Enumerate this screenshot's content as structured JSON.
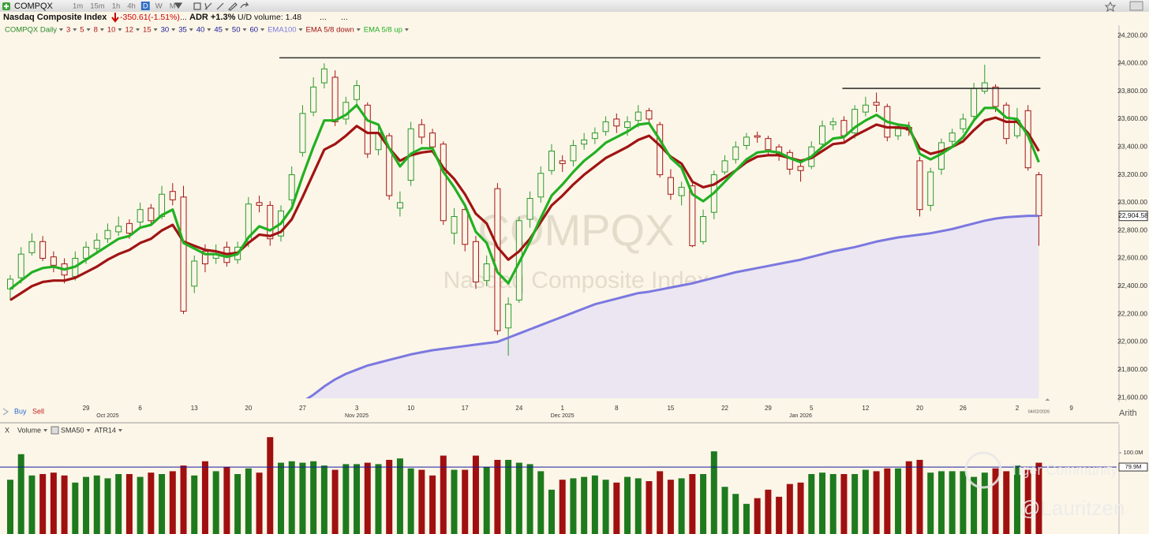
{
  "toolbar": {
    "symbol": "COMPQX",
    "intervals": [
      "1m",
      "15m",
      "1h",
      "4h",
      "D",
      "W",
      "M"
    ],
    "active_interval": "D"
  },
  "header": {
    "name": "Nasdaq Composite Index",
    "change": "-350.61(-1.51%)",
    "more": "...",
    "adr": "ADR +1.3%",
    "ud_volume": "U/D volume: 1.48"
  },
  "chart_data": [
    {
      "type": "candlestick",
      "title": "COMPQX Daily",
      "watermark": [
        "COMPQX",
        "Nasdaq Composite Index"
      ],
      "ribbon_periods": [
        {
          "label": "3",
          "color": "#b01818"
        },
        {
          "label": "5",
          "color": "#b01818"
        },
        {
          "label": "8",
          "color": "#b01818"
        },
        {
          "label": "10",
          "color": "#b01818"
        },
        {
          "label": "12",
          "color": "#b01818"
        },
        {
          "label": "15",
          "color": "#b01818"
        },
        {
          "label": "30",
          "color": "#1a1a9a"
        },
        {
          "label": "35",
          "color": "#1a1a9a"
        },
        {
          "label": "40",
          "color": "#1a1a9a"
        },
        {
          "label": "45",
          "color": "#1a1a9a"
        },
        {
          "label": "50",
          "color": "#1a1a9a"
        },
        {
          "label": "60",
          "color": "#1a1a9a"
        }
      ],
      "categories": [
        null,
        null,
        null,
        null,
        null,
        null,
        null,
        "29",
        null,
        null,
        null,
        null,
        "6",
        null,
        null,
        null,
        null,
        "13",
        null,
        null,
        null,
        null,
        "20",
        null,
        null,
        null,
        null,
        "27",
        null,
        null,
        null,
        null,
        "3",
        null,
        null,
        null,
        null,
        "10",
        null,
        null,
        null,
        null,
        "17",
        null,
        null,
        null,
        null,
        "24",
        null,
        null,
        null,
        "1",
        null,
        null,
        null,
        null,
        "8",
        null,
        null,
        null,
        null,
        "15",
        null,
        null,
        null,
        null,
        "22",
        null,
        null,
        null,
        "29",
        null,
        null,
        null,
        "5",
        null,
        null,
        null,
        null,
        "12",
        null,
        null,
        null,
        null,
        "20",
        null,
        null,
        null,
        "26",
        null,
        null,
        null,
        null,
        "2",
        null,
        null
      ],
      "future_ticks": [
        "9"
      ],
      "months": [
        "Oct 2025",
        "Nov 2025",
        "Dec 2025",
        "Jan 2026"
      ],
      "up_color": "#2c9a2c",
      "down_color": "#a31515",
      "open": [
        22380,
        22460,
        22640,
        22720,
        22610,
        22560,
        22470,
        22600,
        22670,
        22740,
        22790,
        22850,
        22860,
        22960,
        22900,
        23080,
        23040,
        22400,
        22650,
        22600,
        22680,
        22590,
        22720,
        23000,
        22980,
        22760,
        23020,
        23360,
        23650,
        23860,
        23900,
        23600,
        23740,
        23700,
        23380,
        23480,
        22960,
        23160,
        23560,
        23500,
        23420,
        22780,
        22950,
        22720,
        22440,
        23100,
        22100,
        22300,
        22880,
        23040,
        23230,
        23300,
        23300,
        23420,
        23460,
        23510,
        23600,
        23540,
        23590,
        23660,
        23560,
        23180,
        23050,
        23120,
        22720,
        22930,
        23220,
        23310,
        23410,
        23480,
        23460,
        23400,
        23360,
        23260,
        23260,
        23420,
        23560,
        23590,
        23500,
        23650,
        23720,
        23690,
        23480,
        23540,
        23300,
        22980,
        23240,
        23440,
        23530,
        23620,
        23800,
        23830,
        23700,
        23480,
        23660,
        23200
      ],
      "high": [
        22480,
        22680,
        22780,
        22760,
        22650,
        22600,
        22650,
        22720,
        22780,
        22850,
        22900,
        22880,
        23000,
        22990,
        23120,
        23140,
        23120,
        22620,
        22700,
        22700,
        22720,
        22720,
        23040,
        23050,
        23010,
        22980,
        23260,
        23700,
        23900,
        24000,
        23950,
        23760,
        23880,
        23720,
        23560,
        23500,
        23080,
        23580,
        23600,
        23530,
        23440,
        22960,
        22980,
        22760,
        22620,
        23140,
        22320,
        22900,
        23080,
        23260,
        23420,
        23340,
        23450,
        23500,
        23540,
        23620,
        23640,
        23620,
        23700,
        23680,
        23580,
        23240,
        23150,
        23140,
        22950,
        23230,
        23340,
        23440,
        23500,
        23510,
        23480,
        23420,
        23380,
        23300,
        23440,
        23590,
        23610,
        23620,
        23700,
        23760,
        23790,
        23710,
        23570,
        23580,
        23330,
        23250,
        23460,
        23530,
        23640,
        23860,
        23990,
        23850,
        23720,
        23680,
        23700,
        23220
      ],
      "low": [
        22300,
        22420,
        22620,
        22580,
        22500,
        22420,
        22440,
        22560,
        22640,
        22710,
        22760,
        22740,
        22830,
        22840,
        22880,
        22980,
        22200,
        22350,
        22500,
        22560,
        22540,
        22560,
        22680,
        22930,
        22690,
        22720,
        22990,
        23330,
        23620,
        23820,
        23550,
        23560,
        23700,
        23320,
        23340,
        23020,
        22900,
        23120,
        23420,
        23360,
        22840,
        22700,
        22650,
        22380,
        22400,
        22050,
        21900,
        22280,
        22820,
        23000,
        23200,
        23220,
        23260,
        23380,
        23420,
        23480,
        23500,
        23480,
        23540,
        23560,
        23180,
        23020,
        22980,
        22680,
        22700,
        22880,
        23200,
        23280,
        23380,
        23430,
        23340,
        23300,
        23200,
        23150,
        23240,
        23400,
        23520,
        23440,
        23460,
        23620,
        23650,
        23440,
        23450,
        23480,
        22900,
        22940,
        23200,
        23400,
        23500,
        23600,
        23780,
        23650,
        23420,
        23460,
        23230,
        22690
      ],
      "close": [
        22450,
        22630,
        22720,
        22600,
        22550,
        22480,
        22600,
        22680,
        22730,
        22800,
        22830,
        22780,
        22950,
        22870,
        23060,
        23020,
        22220,
        22580,
        22560,
        22630,
        22570,
        22680,
        22990,
        22980,
        22740,
        22940,
        23200,
        23640,
        23830,
        23960,
        23580,
        23720,
        23840,
        23350,
        23500,
        23050,
        23000,
        23530,
        23470,
        23400,
        22870,
        22900,
        22700,
        22430,
        22560,
        22080,
        22270,
        22870,
        23030,
        23210,
        23370,
        23280,
        23410,
        23450,
        23500,
        23580,
        23550,
        23580,
        23650,
        23600,
        23200,
        23060,
        23110,
        22690,
        22900,
        23200,
        23300,
        23400,
        23470,
        23470,
        23380,
        23350,
        23240,
        23230,
        23400,
        23550,
        23580,
        23480,
        23670,
        23700,
        23700,
        23470,
        23530,
        23520,
        22950,
        23220,
        23430,
        23500,
        23600,
        23820,
        23860,
        23690,
        23460,
        23590,
        23250,
        22905
      ],
      "series": [
        {
          "name": "EMA100",
          "color": "#7b78e0",
          "fill": "#ebe6f2",
          "values": [
            null,
            null,
            null,
            null,
            null,
            null,
            null,
            null,
            null,
            null,
            null,
            null,
            null,
            null,
            null,
            null,
            null,
            null,
            null,
            null,
            null,
            null,
            null,
            null,
            null,
            null,
            null,
            21570,
            21620,
            21680,
            21730,
            21770,
            21800,
            21830,
            21850,
            21870,
            21890,
            21910,
            21925,
            21940,
            21950,
            21960,
            21970,
            21980,
            21990,
            22000,
            22030,
            22060,
            22090,
            22120,
            22150,
            22180,
            22210,
            22240,
            22270,
            22290,
            22310,
            22330,
            22350,
            22360,
            22375,
            22390,
            22405,
            22420,
            22440,
            22460,
            22480,
            22500,
            22515,
            22530,
            22545,
            22560,
            22575,
            22590,
            22610,
            22630,
            22650,
            22665,
            22680,
            22700,
            22720,
            22735,
            22750,
            22760,
            22770,
            22780,
            22795,
            22810,
            22830,
            22850,
            22870,
            22885,
            22895,
            22900,
            22905,
            22905
          ]
        },
        {
          "name": "EMA 5/8 down",
          "color": "#a01414",
          "values": [
            22300,
            22350,
            22400,
            22430,
            22440,
            22440,
            22460,
            22500,
            22540,
            22590,
            22630,
            22660,
            22710,
            22740,
            22800,
            22840,
            22720,
            22690,
            22660,
            22650,
            22630,
            22640,
            22710,
            22770,
            22760,
            22790,
            22880,
            23040,
            23210,
            23380,
            23420,
            23480,
            23550,
            23500,
            23500,
            23390,
            23300,
            23340,
            23360,
            23370,
            23250,
            23170,
            23060,
            22920,
            22850,
            22680,
            22590,
            22650,
            22740,
            22860,
            22980,
            23050,
            23130,
            23200,
            23260,
            23320,
            23360,
            23400,
            23450,
            23480,
            23410,
            23330,
            23280,
            23150,
            23110,
            23130,
            23180,
            23230,
            23290,
            23330,
            23340,
            23340,
            23320,
            23300,
            23320,
            23370,
            23420,
            23430,
            23480,
            23520,
            23560,
            23540,
            23540,
            23530,
            23390,
            23350,
            23370,
            23400,
            23440,
            23520,
            23590,
            23610,
            23580,
            23580,
            23500,
            23370
          ]
        },
        {
          "name": "EMA 5/8 up",
          "color": "#22b022",
          "values": [
            22380,
            22440,
            22500,
            22530,
            22540,
            22520,
            22540,
            22590,
            22640,
            22690,
            22740,
            22760,
            22820,
            22840,
            22910,
            22950,
            22710,
            22670,
            22630,
            22630,
            22610,
            22630,
            22750,
            22830,
            22800,
            22850,
            22960,
            23190,
            23400,
            23590,
            23590,
            23630,
            23700,
            23590,
            23560,
            23390,
            23260,
            23350,
            23390,
            23390,
            23220,
            23110,
            22980,
            22790,
            22710,
            22500,
            22420,
            22570,
            22720,
            22890,
            23050,
            23130,
            23220,
            23300,
            23360,
            23430,
            23470,
            23510,
            23560,
            23570,
            23450,
            23320,
            23250,
            23060,
            23010,
            23070,
            23150,
            23230,
            23310,
            23360,
            23370,
            23360,
            23320,
            23290,
            23330,
            23400,
            23460,
            23470,
            23540,
            23590,
            23630,
            23580,
            23560,
            23550,
            23350,
            23310,
            23350,
            23400,
            23470,
            23590,
            23680,
            23680,
            23610,
            23600,
            23480,
            23290
          ]
        }
      ],
      "levels": [
        24040,
        23820
      ],
      "ylim": [
        21600,
        24200
      ],
      "yticks": [
        {
          "value": 21600,
          "label": "21,600.00"
        },
        {
          "value": 21800,
          "label": "21,800.00"
        },
        {
          "value": 22000,
          "label": "22,000.00"
        },
        {
          "value": 22200,
          "label": "22,200.00"
        },
        {
          "value": 22400,
          "label": "22,400.00"
        },
        {
          "value": 22600,
          "label": "22,600.00"
        },
        {
          "value": 22800,
          "label": "22,800.00"
        },
        {
          "value": 23000,
          "label": "23,000.00"
        },
        {
          "value": 23200,
          "label": "23,200.00"
        },
        {
          "value": 23400,
          "label": "23,400.00"
        },
        {
          "value": 23600,
          "label": "23,600.00"
        },
        {
          "value": 23800,
          "label": "23,800.00"
        },
        {
          "value": 24000,
          "label": "24,000.00"
        },
        {
          "value": 24200,
          "label": "24,200.00"
        }
      ],
      "last_price": {
        "value": 22904.58,
        "label": "22,904.58"
      },
      "last_date": "04/02/2026",
      "scale": "Arith",
      "buy": "Buy",
      "sell": "Sell"
    },
    {
      "type": "bar",
      "close_label": "X",
      "legend": [
        "Volume",
        "SMA50",
        "ATR14"
      ],
      "values": [
        62,
        98,
        68,
        70,
        72,
        68,
        58,
        66,
        68,
        64,
        70,
        70,
        66,
        72,
        70,
        74,
        82,
        68,
        88,
        74,
        80,
        70,
        78,
        72,
        122,
        86,
        88,
        86,
        88,
        82,
        76,
        84,
        84,
        86,
        84,
        90,
        92,
        78,
        76,
        68,
        96,
        76,
        76,
        96,
        80,
        90,
        90,
        86,
        84,
        74,
        48,
        62,
        64,
        66,
        68,
        62,
        58,
        66,
        64,
        60,
        74,
        62,
        64,
        70,
        70,
        102,
        52,
        42,
        28,
        36,
        48,
        38,
        56,
        58,
        70,
        72,
        70,
        70,
        70,
        76,
        74,
        78,
        78,
        88,
        90,
        72,
        74,
        74,
        74,
        66,
        72,
        78,
        74,
        82,
        76,
        86
      ],
      "ylim": [
        0,
        140
      ],
      "yticks": [
        {
          "value": 100,
          "label": "100.0M"
        }
      ],
      "sma_value": {
        "value": 79.9,
        "label": "79.9M"
      },
      "sma_color": "#1a1aa0"
    }
  ],
  "overlay": {
    "community": "Tiger Community",
    "author": "@Lauritzen"
  }
}
